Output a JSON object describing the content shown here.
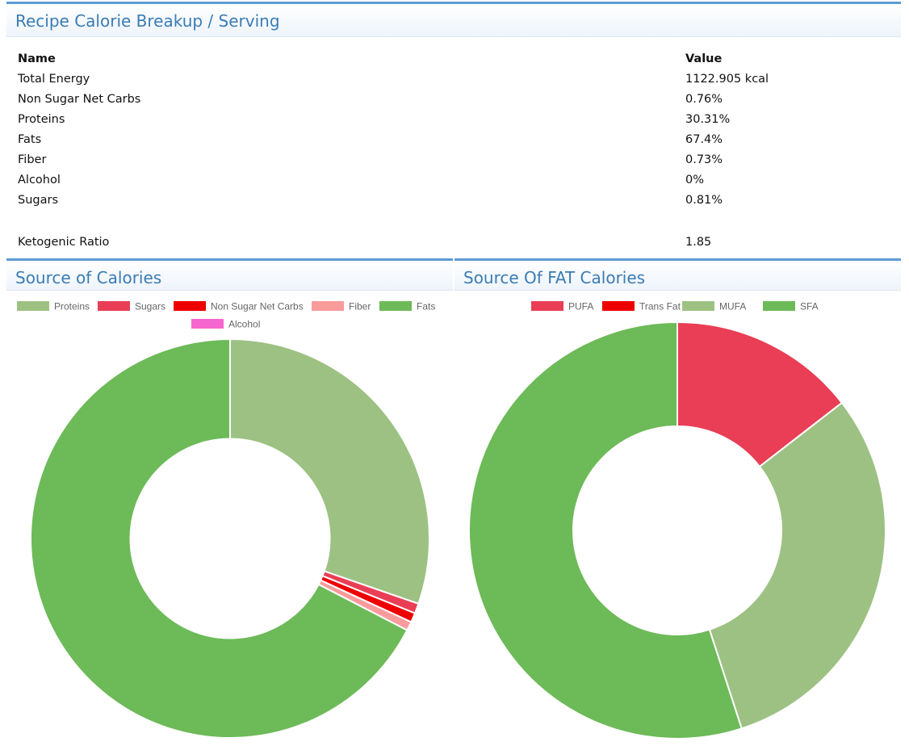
{
  "breakup": {
    "title": "Recipe Calorie Breakup / Serving",
    "headers": {
      "name": "Name",
      "value": "Value"
    },
    "rows": [
      {
        "name": "Total Energy",
        "value": "1122.905 kcal"
      },
      {
        "name": "Non Sugar Net Carbs",
        "value": "0.76%"
      },
      {
        "name": "Proteins",
        "value": "30.31%"
      },
      {
        "name": "Fats",
        "value": "67.4%"
      },
      {
        "name": "Fiber",
        "value": "0.73%"
      },
      {
        "name": "Alcohol",
        "value": "0%"
      },
      {
        "name": "Sugars",
        "value": "0.81%"
      }
    ],
    "keto": {
      "name": "Ketogenic Ratio",
      "value": "1.85"
    }
  },
  "chart_data": [
    {
      "type": "pie",
      "title": "Source of Calories",
      "legend_position": "top",
      "donut": true,
      "slices": [
        {
          "label": "Proteins",
          "value": 30.31,
          "color": "#9dc183"
        },
        {
          "label": "Sugars",
          "value": 0.81,
          "color": "#e93e55"
        },
        {
          "label": "Non Sugar Net Carbs",
          "value": 0.76,
          "color": "#ee0000"
        },
        {
          "label": "Fiber",
          "value": 0.73,
          "color": "#f99b9b"
        },
        {
          "label": "Fats",
          "value": 67.4,
          "color": "#6dba58"
        },
        {
          "label": "Alcohol",
          "value": 0,
          "color": "#f567cf"
        }
      ]
    },
    {
      "type": "pie",
      "title": "Source Of FAT Calories",
      "legend_position": "top",
      "donut": true,
      "slices": [
        {
          "label": "PUFA",
          "value": 14.5,
          "color": "#e93e55"
        },
        {
          "label": "Trans Fat",
          "value": 0,
          "color": "#ee0000"
        },
        {
          "label": "MUFA",
          "value": 30.5,
          "color": "#9dc183"
        },
        {
          "label": "SFA",
          "value": 55.0,
          "color": "#6dba58"
        }
      ]
    }
  ]
}
